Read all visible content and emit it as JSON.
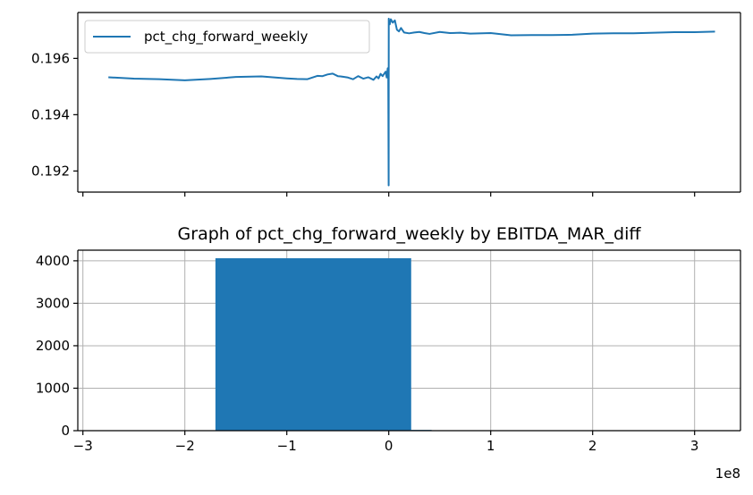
{
  "chart_data": [
    {
      "type": "line",
      "title": "",
      "xlabel": "",
      "ylabel": "",
      "legend": {
        "position": "top-left",
        "entries": [
          "pct_chg_forward_weekly"
        ]
      },
      "grid": false,
      "xlim": [
        -305000000.0,
        345000000.0
      ],
      "ylim": [
        0.19125,
        0.19763
      ],
      "yticks": [
        0.192,
        0.194,
        0.196
      ],
      "ytick_labels": [
        "0.192",
        "0.194",
        "0.196"
      ],
      "xticks": [
        -300000000.0,
        -200000000.0,
        -100000000.0,
        0,
        100000000.0,
        200000000.0,
        300000000.0
      ],
      "xtick_labels": [
        "",
        "",
        "",
        "",
        "",
        "",
        ""
      ],
      "color": "#1f77b4",
      "series": [
        {
          "name": "pct_chg_forward_weekly",
          "x": [
            -275000000.0,
            -250000000.0,
            -225000000.0,
            -200000000.0,
            -175000000.0,
            -150000000.0,
            -125000000.0,
            -100000000.0,
            -90000000.0,
            -80000000.0,
            -70000000.0,
            -65000000.0,
            -60000000.0,
            -55000000.0,
            -50000000.0,
            -45000000.0,
            -40000000.0,
            -35000000.0,
            -30000000.0,
            -25000000.0,
            -20000000.0,
            -15000000.0,
            -12000000.0,
            -10000000.0,
            -8000000.0,
            -6000000.0,
            -4000000.0,
            -3000000.0,
            -2000000.0,
            -1000000.0,
            -500000.0,
            -100000.0,
            0,
            100000.0,
            500000.0,
            1000000.0,
            2000000.0,
            4000000.0,
            6000000.0,
            8000000.0,
            10000000.0,
            12000000.0,
            15000000.0,
            20000000.0,
            25000000.0,
            30000000.0,
            35000000.0,
            40000000.0,
            50000000.0,
            60000000.0,
            70000000.0,
            80000000.0,
            100000000.0,
            120000000.0,
            140000000.0,
            160000000.0,
            180000000.0,
            200000000.0,
            220000000.0,
            240000000.0,
            260000000.0,
            280000000.0,
            300000000.0,
            320000000.0
          ],
          "y": [
            0.19533,
            0.19528,
            0.19526,
            0.19522,
            0.19527,
            0.19534,
            0.19536,
            0.19529,
            0.19527,
            0.19526,
            0.19538,
            0.19537,
            0.19543,
            0.19546,
            0.19537,
            0.19535,
            0.19532,
            0.19526,
            0.19537,
            0.19528,
            0.19533,
            0.19524,
            0.19536,
            0.19529,
            0.19545,
            0.19537,
            0.19548,
            0.19553,
            0.19532,
            0.19565,
            0.19558,
            0.19149,
            0.19741,
            0.19737,
            0.19725,
            0.19721,
            0.19739,
            0.19727,
            0.19735,
            0.19702,
            0.19696,
            0.19708,
            0.19692,
            0.19689,
            0.19692,
            0.19694,
            0.1969,
            0.19687,
            0.19694,
            0.1969,
            0.19691,
            0.19688,
            0.1969,
            0.19682,
            0.19683,
            0.19683,
            0.19684,
            0.19688,
            0.19689,
            0.19689,
            0.19691,
            0.19693,
            0.19693,
            0.19695
          ]
        }
      ]
    },
    {
      "type": "bar",
      "title": "Graph of pct_chg_forward_weekly by EBITDA_MAR_diff",
      "xlabel": "",
      "ylabel": "",
      "grid": true,
      "xlim": [
        -305000000.0,
        345000000.0
      ],
      "ylim": [
        0,
        4250
      ],
      "yticks": [
        0,
        1000,
        2000,
        3000,
        4000
      ],
      "ytick_labels": [
        "0",
        "1000",
        "2000",
        "3000",
        "4000"
      ],
      "xticks": [
        -300000000.0,
        -200000000.0,
        -100000000.0,
        0,
        100000000.0,
        200000000.0,
        300000000.0
      ],
      "xtick_labels": [
        "−3",
        "−2",
        "−1",
        "0",
        "1",
        "2",
        "3"
      ],
      "offset_label": "1e8",
      "color": "#1f77b4",
      "bins": [
        {
          "x0": -170000000.0,
          "x1": 22000000.0,
          "value": 4060
        },
        {
          "x0": 22000000.0,
          "x1": 42000000.0,
          "value": 18
        }
      ]
    }
  ]
}
